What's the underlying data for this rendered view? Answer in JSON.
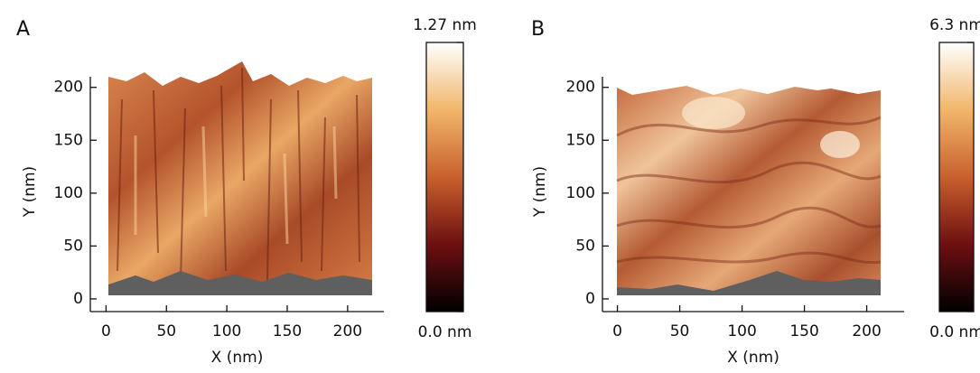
{
  "chart_data": [
    {
      "type": "surface",
      "panel_label": "A",
      "xlabel": "X (nm)",
      "ylabel": "Y (nm)",
      "xlim": [
        -13,
        230
      ],
      "xticks": [
        0,
        50,
        100,
        150,
        200
      ],
      "ylim": [
        -12,
        210
      ],
      "yticks": [
        0,
        50,
        100,
        150,
        200
      ],
      "clim": [
        0,
        1.27
      ],
      "colorbar_ticks": [
        {
          "value": 0,
          "label": "0.0 nm"
        },
        {
          "value": 1.27,
          "label": "1.27 nm"
        }
      ]
    },
    {
      "type": "surface",
      "panel_label": "B",
      "xlabel": "X (nm)",
      "ylabel": "Y (nm)",
      "xlim": [
        -12,
        230
      ],
      "xticks": [
        0,
        50,
        100,
        150,
        200
      ],
      "ylim": [
        -12,
        210
      ],
      "yticks": [
        0,
        50,
        100,
        150,
        200
      ],
      "clim": [
        0,
        6.3
      ],
      "colorbar_ticks": [
        {
          "value": 0,
          "label": "0.0 nm"
        },
        {
          "value": 6.3,
          "label": "6.3 nm"
        }
      ]
    }
  ]
}
